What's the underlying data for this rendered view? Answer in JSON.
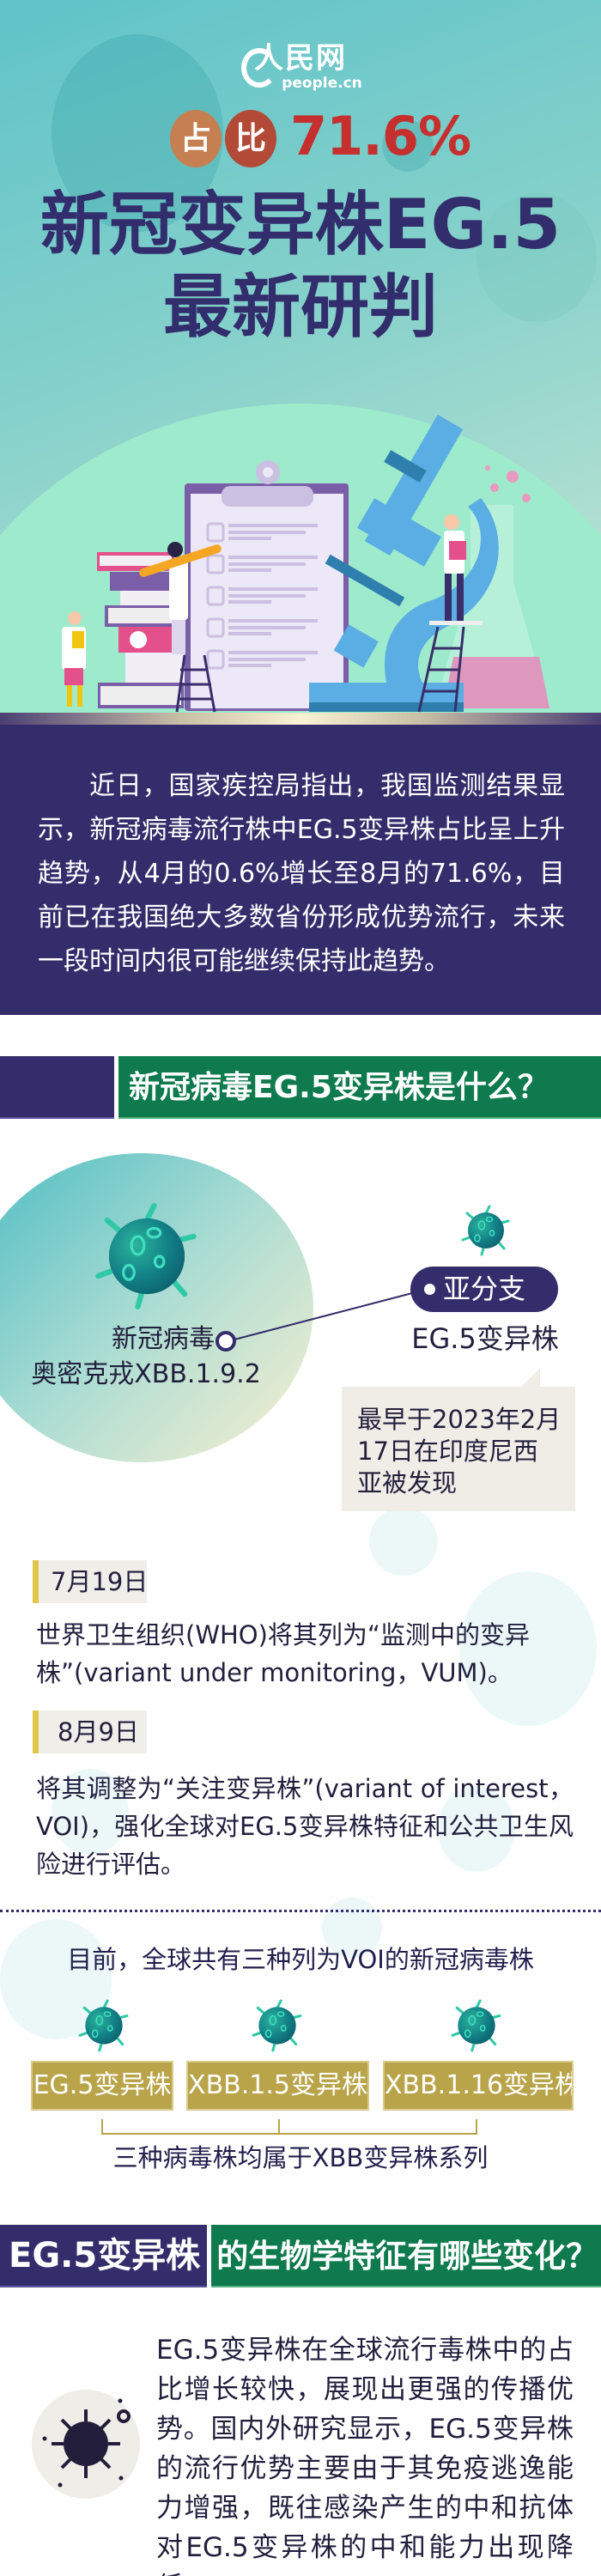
{
  "header": {
    "logo_cn": "人民网",
    "logo_en": "people.cn",
    "badge_chars": [
      "占",
      "比"
    ],
    "percentage": "71.6%",
    "title_line1": "新冠变异株EG.5",
    "title_line2": "最新研判"
  },
  "intro": {
    "text": "近日，国家疾控局指出，我国监测结果显示，新冠病毒流行株中EG.5变异株占比呈上升趋势，从4月的0.6%增长至8月的71.6%，目前已在我国绝大多数省份形成优势流行，未来一段时间内很可能继续保持此趋势。"
  },
  "section1": {
    "heading": "新冠病毒EG.5变异株是什么？",
    "parent_line1": "新冠病毒",
    "parent_line2": "奥密克戎XBB.1.9.2",
    "pill_label": "亚分支",
    "child_label": "EG.5变异株",
    "callout": "最早于2023年2月17日在印度尼西亚被发现",
    "timeline": [
      {
        "date": "7月19日",
        "text": "世界卫生组织(WHO)将其列为“监测中的变异株”(variant under monitoring，VUM)。"
      },
      {
        "date": "8月9日",
        "text": "将其调整为“关注变异株”(variant of interest，VOI)，强化全球对EG.5变异株特征和公共卫生风险进行评估。"
      }
    ],
    "voi_intro": "目前，全球共有三种列为VOI的新冠病毒株",
    "voi_strains": [
      "EG.5变异株",
      "XBB.1.5变异株",
      "XBB.1.16变异株"
    ],
    "voi_caption": "三种病毒株均属于XBB变异株系列"
  },
  "section2": {
    "heading_left": "EG.5变异株",
    "heading_right": "的生物学特征有哪些变化？",
    "text": "EG.5变异株在全球流行毒株中的占比增长较快，展现出更强的传播优势。国内外研究显示，EG.5变异株的流行优势主要由于其免疫逃逸能力增强，既往感染产生的中和抗体对EG.5变异株的中和能力出现降低。"
  },
  "colors": {
    "navy": "#332d6b",
    "green": "#0f7a4d",
    "red": "#c5302e",
    "gold": "#b9a44a",
    "teal": "#5fc3c8"
  }
}
